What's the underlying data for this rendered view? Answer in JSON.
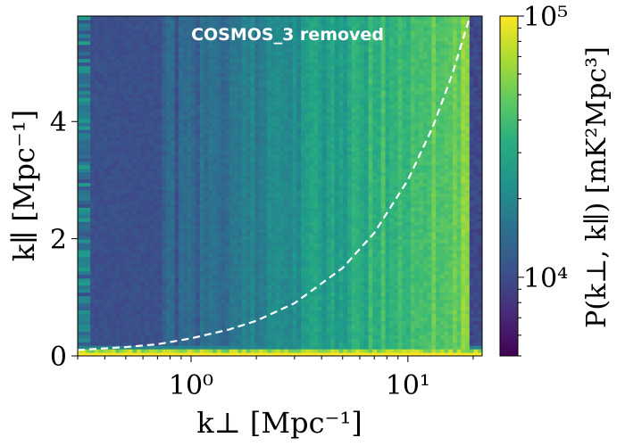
{
  "chart_data": {
    "type": "heatmap",
    "title": "",
    "annotation": "COSMOS_3 removed",
    "xlabel": "k⊥ [Mpc⁻¹]",
    "ylabel": "k∥ [Mpc⁻¹]",
    "x_scale": "log",
    "y_scale": "linear",
    "xlim": [
      0.3,
      22
    ],
    "ylim": [
      0,
      5.8
    ],
    "x_ticks": [
      {
        "value": 1,
        "label": "10⁰"
      },
      {
        "value": 10,
        "label": "10¹"
      }
    ],
    "y_ticks": [
      {
        "value": 0,
        "label": "0"
      },
      {
        "value": 2,
        "label": "2"
      },
      {
        "value": 4,
        "label": "4"
      }
    ],
    "colorbar": {
      "label": "P(k⊥, k∥) [mK²Mpc³]",
      "scale": "log",
      "range": [
        5000,
        100000
      ],
      "ticks": [
        {
          "value": 10000,
          "label": "10⁴"
        },
        {
          "value": 100000,
          "label": "10⁵"
        }
      ],
      "colormap": "viridis"
    },
    "overlay_line": {
      "style": "dashed",
      "color": "#ffffff",
      "x": [
        0.3,
        0.5,
        0.7,
        1.0,
        1.5,
        2.0,
        3.0,
        5.0,
        7.0,
        10.0,
        13.0,
        16.0,
        19.0,
        21.0
      ],
      "y": [
        0.1,
        0.15,
        0.2,
        0.3,
        0.45,
        0.6,
        0.9,
        1.5,
        2.1,
        3.0,
        3.9,
        4.8,
        5.7,
        6.3
      ]
    }
  }
}
